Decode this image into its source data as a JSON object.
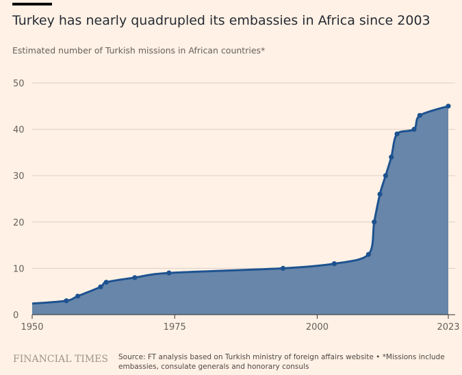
{
  "header": {
    "title": "Turkey has nearly quadrupled its embassies in Africa since 2003",
    "subtitle": "Estimated number of Turkish missions in African countries*"
  },
  "chart_data": {
    "type": "area",
    "title": "Turkey has nearly quadrupled its embassies in Africa since 2003",
    "subtitle": "Estimated number of Turkish missions in African countries*",
    "xlim": [
      1950,
      2023
    ],
    "ylim": [
      0,
      50
    ],
    "x_ticks": [
      "1950",
      "1975",
      "2000",
      "2023"
    ],
    "y_ticks": [
      "0",
      "10",
      "20",
      "30",
      "40",
      "50"
    ],
    "grid": true,
    "x": [
      1950,
      1956,
      1958,
      1962,
      1963,
      1968,
      1974,
      1994,
      2003,
      2009,
      2010,
      2011,
      2012,
      2013,
      2014,
      2017,
      2018,
      2023
    ],
    "values": [
      2.4,
      3,
      4,
      6,
      7,
      8,
      9,
      10,
      11,
      13,
      20,
      26,
      30,
      34,
      39,
      40,
      43,
      45
    ],
    "markers_start_index": 1,
    "colors": {
      "line": "#1d5290",
      "fill": "#6786a9",
      "grid": "#dbd0c6"
    }
  },
  "footer": {
    "brand": "FINANCIAL TIMES",
    "source": "Source: FT analysis based on Turkish ministry of foreign affairs website • *Missions include embassies, consulate generals and honorary consuls"
  }
}
